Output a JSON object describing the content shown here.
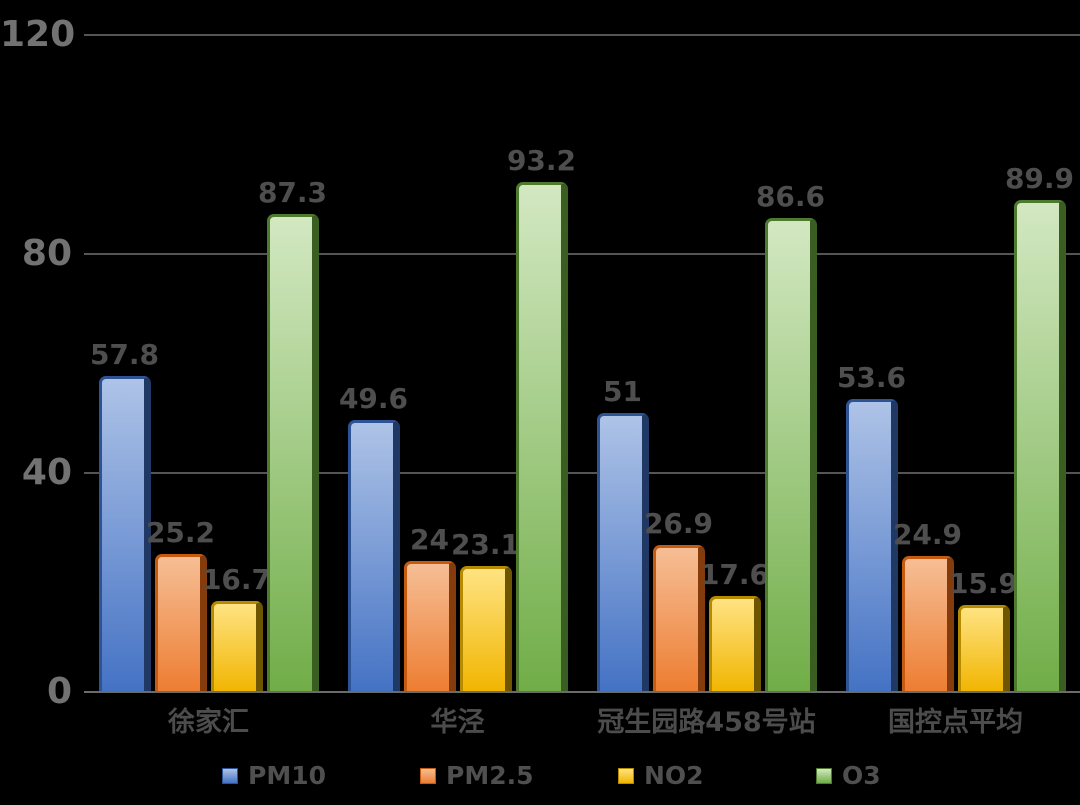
{
  "chart_data": {
    "type": "bar",
    "title": "",
    "xlabel": "",
    "ylabel": "",
    "categories": [
      "徐家汇",
      "华泾",
      "冠生园路458号站",
      "国控点平均"
    ],
    "series": [
      {
        "name": "PM10",
        "values": [
          57.8,
          49.6,
          51,
          53.6
        ],
        "color": "#4472C4",
        "color_light": "#AEC3E7",
        "color_border": "#2E5395",
        "color_shadow": "#1F3864"
      },
      {
        "name": "PM2.5",
        "values": [
          25.2,
          24,
          26.9,
          24.9
        ],
        "color": "#ED7D31",
        "color_light": "#F6BE95",
        "color_border": "#C55A11",
        "color_shadow": "#843C0C"
      },
      {
        "name": "NO2",
        "values": [
          16.7,
          23.1,
          17.6,
          15.9
        ],
        "color": "#F1B500",
        "color_light": "#FFE382",
        "color_border": "#B78B00",
        "color_shadow": "#6E5500"
      },
      {
        "name": "O3",
        "values": [
          87.3,
          93.2,
          86.6,
          89.9
        ],
        "color": "#70AD47",
        "color_light": "#D3E8C2",
        "color_border": "#4E7A2E",
        "color_shadow": "#3A5D21"
      }
    ],
    "data_labels": [
      "57.8",
      "25.2",
      "16.7",
      "87.3",
      "49.6",
      "24",
      "23.1",
      "93.2",
      "51",
      "26.9",
      "17.6",
      "86.6",
      "53.6",
      "24.9",
      "15.9",
      "89.9"
    ],
    "ylim": [
      0,
      120
    ],
    "yticks": [
      0,
      40,
      80,
      120
    ],
    "ytick_labels": [
      "0",
      "40",
      "80",
      "120"
    ],
    "grid": true,
    "legend_position": "bottom",
    "legend_entries": [
      "PM10",
      "PM2.5",
      "NO2",
      "O3"
    ]
  },
  "style": {
    "background": "#000000",
    "gridline_color": "#555555",
    "axis_line_color": "#6B6B6B",
    "y_label_color": "#727272",
    "data_label_color": "#4E4E4E",
    "category_label_color": "#4C4C4C",
    "legend_label_color": "#4F4F4F"
  }
}
